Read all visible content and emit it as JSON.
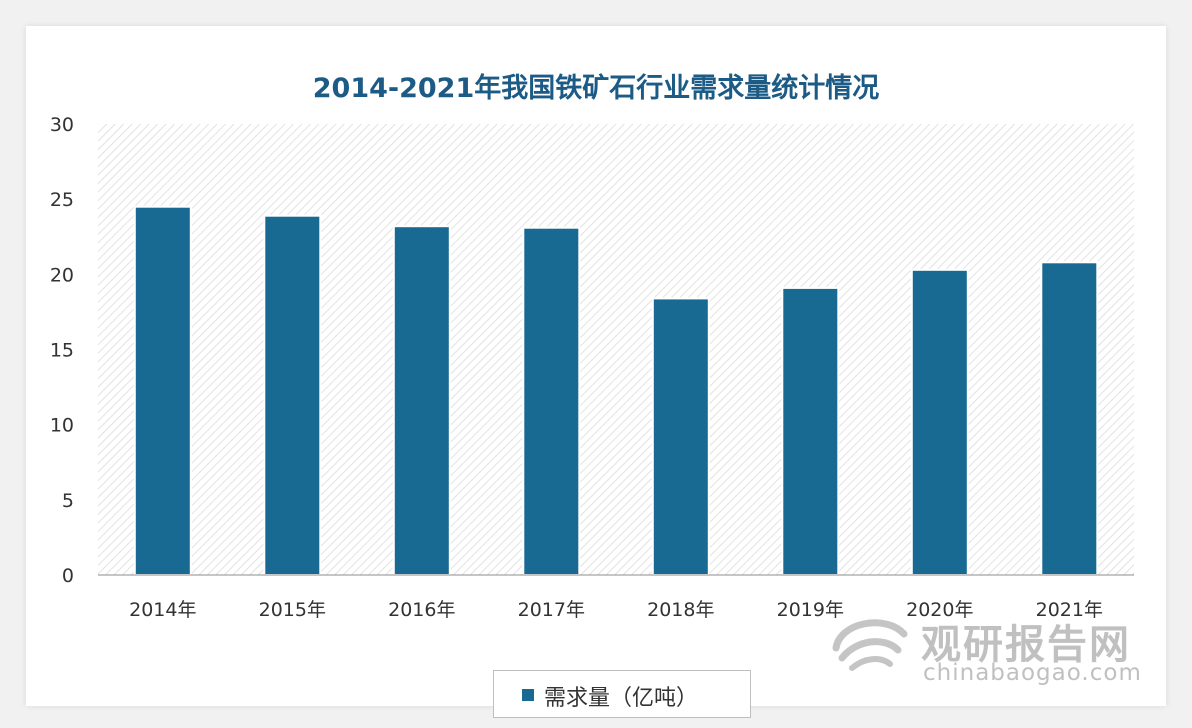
{
  "chart_data": {
    "type": "bar",
    "title": "2014-2021年我国铁矿石行业需求量统计情况",
    "categories": [
      "2014年",
      "2015年",
      "2016年",
      "2017年",
      "2018年",
      "2019年",
      "2020年",
      "2021年"
    ],
    "series": [
      {
        "name": "需求量（亿吨）",
        "values": [
          24.5,
          23.9,
          23.2,
          23.1,
          18.4,
          19.1,
          20.3,
          20.8
        ]
      }
    ],
    "yticks": [
      "0",
      "5",
      "10",
      "15",
      "20",
      "25",
      "30"
    ],
    "ylim": [
      0,
      30
    ],
    "xlabel": "",
    "ylabel": "",
    "legend_position": "bottom",
    "grid": false,
    "colors": {
      "bar": "#186a93",
      "title": "#1c5b86",
      "plot_hatch": "#d9d9d9"
    }
  },
  "watermark": {
    "cn": "观研报告网",
    "en": "chinabaogao.com",
    "icon": "chinabaogao-logo-icon"
  }
}
